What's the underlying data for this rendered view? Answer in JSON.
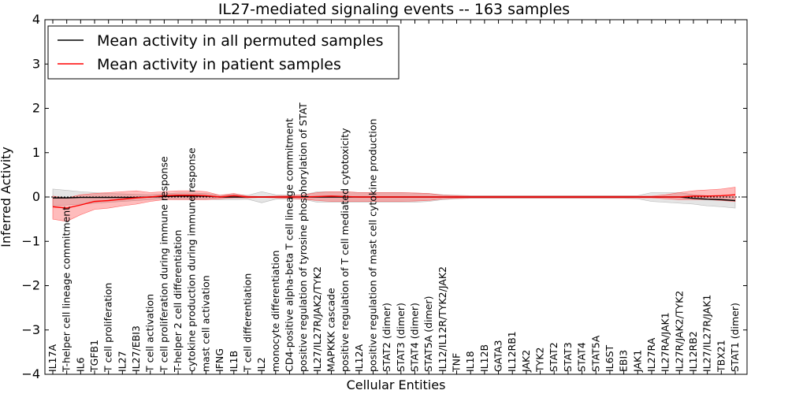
{
  "chart_data": {
    "type": "line",
    "title": "IL27-mediated signaling events -- 163 samples",
    "xlabel": "Cellular Entities",
    "ylabel": "Inferred Activity",
    "ylim": [
      -4,
      4
    ],
    "yticks": [
      -4,
      -3,
      -2,
      -1,
      0,
      1,
      2,
      3,
      4
    ],
    "ytick_labels": [
      "−4",
      "−3",
      "−2",
      "−1",
      "0",
      "1",
      "2",
      "3",
      "4"
    ],
    "legend_position": "top-left",
    "categories": [
      "IL17A",
      "T-helper cell lineage commitment",
      "IL6",
      "TGFB1",
      "T cell proliferation",
      "IL27",
      "IL27/EBI3",
      "T cell activation",
      "T cell proliferation during immune response",
      "T-helper 2 cell differentiation",
      "cytokine production during immune response",
      "mast cell activation",
      "IFNG",
      "IL1B",
      "T cell differentiation",
      "IL2",
      "monocyte differentiation",
      "CD4-positive alpha-beta T cell lineage commitment",
      "positive regulation of tyrosine phosphorylation of STAT",
      "IL27/IL27R/JAK2/TYK2",
      "MAPKKK cascade",
      "positive regulation of T cell mediated cytotoxicity",
      "IL12A",
      "positive regulation of mast cell cytokine production",
      "STAT2 (dimer)",
      "STAT3 (dimer)",
      "STAT4 (dimer)",
      "STAT5A (dimer)",
      "IL12/IL12R/TYK2/JAK2",
      "TNF",
      "IL18",
      "IL12B",
      "GATA3",
      "IL12RB1",
      "JAK2",
      "TYK2",
      "STAT2",
      "STAT3",
      "STAT4",
      "STAT5A",
      "IL6ST",
      "EBI3",
      "JAK1",
      "IL27RA",
      "IL27RA/JAK1",
      "IL27R/JAK2/TYK2",
      "IL12RB2",
      "IL27/IL27R/JAK1",
      "TBX21",
      "STAT1 (dimer)"
    ],
    "series": [
      {
        "name": "Mean activity in all permuted samples",
        "color": "#000000",
        "values": [
          -0.02,
          -0.02,
          -0.01,
          -0.01,
          -0.01,
          -0.01,
          -0.01,
          0.0,
          0.01,
          0.02,
          0.02,
          0.02,
          0.0,
          0.0,
          0.0,
          0.0,
          0.0,
          0.0,
          0.0,
          0.0,
          0.0,
          0.0,
          0.0,
          0.0,
          0.0,
          0.0,
          0.0,
          0.0,
          0.0,
          0.0,
          0.0,
          0.0,
          0.0,
          0.0,
          0.0,
          0.0,
          0.0,
          0.0,
          0.0,
          0.0,
          0.0,
          0.0,
          0.0,
          0.0,
          0.0,
          0.0,
          -0.03,
          -0.05,
          -0.06,
          -0.08
        ],
        "band_upper": [
          0.18,
          0.15,
          0.12,
          0.1,
          0.08,
          0.07,
          0.06,
          0.05,
          0.07,
          0.09,
          0.09,
          0.08,
          0.04,
          0.06,
          0.04,
          0.12,
          0.05,
          0.04,
          0.05,
          0.12,
          0.12,
          0.12,
          0.1,
          0.1,
          0.1,
          0.1,
          0.09,
          0.08,
          0.05,
          0.04,
          0.03,
          0.03,
          0.03,
          0.03,
          0.03,
          0.03,
          0.03,
          0.03,
          0.03,
          0.03,
          0.03,
          0.03,
          0.03,
          0.1,
          0.1,
          0.1,
          0.05,
          0.03,
          0.02,
          0.0
        ],
        "band_lower": [
          -0.2,
          -0.18,
          -0.16,
          -0.14,
          -0.12,
          -0.1,
          -0.08,
          -0.06,
          -0.04,
          -0.05,
          -0.05,
          -0.05,
          -0.06,
          -0.06,
          -0.05,
          -0.13,
          -0.05,
          -0.04,
          -0.05,
          -0.12,
          -0.12,
          -0.12,
          -0.12,
          -0.12,
          -0.12,
          -0.12,
          -0.12,
          -0.1,
          -0.06,
          -0.04,
          -0.03,
          -0.03,
          -0.03,
          -0.03,
          -0.03,
          -0.03,
          -0.03,
          -0.03,
          -0.03,
          -0.03,
          -0.03,
          -0.03,
          -0.04,
          -0.1,
          -0.12,
          -0.14,
          -0.16,
          -0.2,
          -0.22,
          -0.25
        ]
      },
      {
        "name": "Mean activity in patient samples",
        "color": "#ff0000",
        "values": [
          -0.22,
          -0.25,
          -0.18,
          -0.1,
          -0.08,
          -0.05,
          -0.02,
          0.0,
          0.03,
          0.04,
          0.04,
          0.03,
          0.0,
          0.03,
          0.0,
          0.0,
          0.0,
          0.0,
          0.0,
          0.01,
          0.02,
          0.01,
          0.0,
          0.0,
          0.0,
          0.0,
          0.0,
          0.0,
          0.0,
          0.0,
          0.0,
          0.0,
          0.0,
          0.0,
          0.0,
          0.0,
          0.0,
          0.0,
          0.0,
          0.0,
          0.0,
          0.0,
          0.0,
          0.0,
          0.0,
          0.0,
          0.02,
          0.02,
          0.03,
          0.05
        ],
        "band_upper": [
          0.02,
          -0.02,
          0.05,
          0.08,
          0.1,
          0.12,
          0.14,
          0.1,
          0.12,
          0.14,
          0.14,
          0.12,
          0.04,
          0.08,
          0.02,
          0.01,
          0.02,
          0.03,
          0.05,
          0.1,
          0.12,
          0.12,
          0.1,
          0.1,
          0.1,
          0.1,
          0.09,
          0.08,
          0.04,
          0.03,
          0.02,
          0.02,
          0.02,
          0.02,
          0.02,
          0.02,
          0.02,
          0.02,
          0.02,
          0.02,
          0.02,
          0.02,
          0.02,
          0.02,
          0.05,
          0.1,
          0.14,
          0.16,
          0.18,
          0.22
        ],
        "band_lower": [
          -0.5,
          -0.55,
          -0.4,
          -0.28,
          -0.25,
          -0.2,
          -0.16,
          -0.1,
          -0.06,
          -0.06,
          -0.06,
          -0.06,
          -0.04,
          -0.02,
          -0.02,
          -0.01,
          -0.02,
          -0.03,
          -0.05,
          -0.08,
          -0.1,
          -0.1,
          -0.1,
          -0.1,
          -0.1,
          -0.1,
          -0.09,
          -0.08,
          -0.04,
          -0.03,
          -0.02,
          -0.02,
          -0.02,
          -0.02,
          -0.02,
          -0.02,
          -0.02,
          -0.02,
          -0.02,
          -0.02,
          -0.02,
          -0.02,
          -0.02,
          -0.02,
          -0.04,
          -0.06,
          -0.06,
          -0.06,
          -0.08,
          -0.1
        ]
      }
    ]
  }
}
